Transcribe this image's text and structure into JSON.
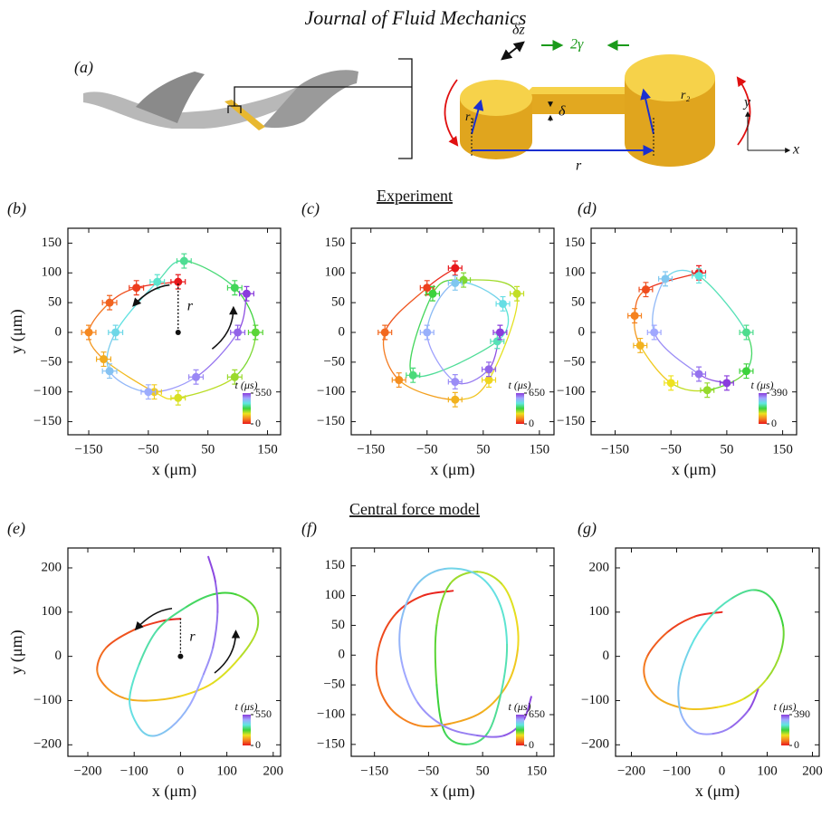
{
  "header": "Journal of Fluid Mechanics",
  "panel_a": {
    "label": "(a)",
    "labels": [
      "δz",
      "2γ",
      "r₁",
      "δ",
      "r",
      "r₂",
      "y",
      "x"
    ]
  },
  "sections": [
    "Experiment",
    "Central force model"
  ],
  "colormap": [
    "#e8181c",
    "#f58220",
    "#eee21e",
    "#3cd23c",
    "#5fe6e0",
    "#a0a8ff",
    "#8a3cdc"
  ],
  "chart_data": [
    {
      "panel": "(b)",
      "type": "scatter",
      "x": [
        0,
        -70,
        -115,
        -150,
        -125,
        -40,
        0,
        95,
        130,
        95,
        10,
        -35,
        -105,
        -115,
        -50,
        30,
        100,
        115
      ],
      "y": [
        85,
        75,
        50,
        0,
        -45,
        -100,
        -110,
        -75,
        0,
        75,
        120,
        85,
        0,
        -65,
        -100,
        -75,
        0,
        65
      ],
      "xerr": 12,
      "yerr": 12,
      "xlim": [
        -185,
        172
      ],
      "ylim": [
        -172,
        175
      ],
      "xticks": [
        {
          "value": -150,
          "label": "−150"
        },
        {
          "value": -50,
          "label": "−50"
        },
        50,
        150
      ],
      "yticks": [
        {
          "value": -150,
          "label": "−150"
        },
        {
          "value": -100,
          "label": "−100"
        },
        {
          "value": -50,
          "label": "−50"
        },
        0,
        50,
        100,
        150
      ],
      "xlabel": "x (μm)",
      "ylabel": "y (μm)",
      "annotation": "r",
      "colorbar": {
        "label": "t (μs)",
        "clim": [
          0,
          550
        ],
        "ticks": [
          0,
          550
        ]
      }
    },
    {
      "panel": "(c)",
      "type": "scatter",
      "x": [
        0,
        -50,
        -125,
        -100,
        0,
        60,
        110,
        15,
        -40,
        -75,
        75,
        85,
        0,
        -50,
        0,
        60,
        80
      ],
      "y": [
        108,
        75,
        0,
        -80,
        -113,
        -80,
        65,
        88,
        65,
        -72,
        -15,
        48,
        83,
        0,
        -83,
        -62,
        0
      ],
      "xerr": 12,
      "yerr": 12,
      "xlim": [
        -185,
        176
      ],
      "ylim": [
        -172,
        175
      ],
      "xticks": [
        {
          "value": -150,
          "label": "−150"
        },
        {
          "value": -50,
          "label": "−50"
        },
        50,
        150
      ],
      "yticks": [
        {
          "value": -150,
          "label": "−150"
        },
        {
          "value": -100,
          "label": "−100"
        },
        {
          "value": -50,
          "label": "−50"
        },
        0,
        50,
        100,
        150
      ],
      "xlabel": "x (μm)",
      "colorbar": {
        "label": "t (μs)",
        "clim": [
          0,
          650
        ],
        "ticks": [
          0,
          650
        ]
      }
    },
    {
      "panel": "(d)",
      "type": "scatter",
      "x": [
        0,
        -95,
        -115,
        -105,
        -50,
        15,
        85,
        85,
        0,
        -60,
        -80,
        0,
        50
      ],
      "y": [
        100,
        72,
        28,
        -22,
        -85,
        -97,
        -65,
        0,
        95,
        90,
        0,
        -70,
        -85
      ],
      "xerr": 12,
      "yerr": 12,
      "xlim": [
        -193,
        175
      ],
      "ylim": [
        -172,
        175
      ],
      "xticks": [
        {
          "value": -150,
          "label": "−150"
        },
        {
          "value": -50,
          "label": "−50"
        },
        50,
        150
      ],
      "yticks": [
        {
          "value": -150,
          "label": "−150"
        },
        {
          "value": -100,
          "label": "−100"
        },
        {
          "value": -50,
          "label": "−50"
        },
        0,
        50,
        100,
        150
      ],
      "xlabel": "x (μm)",
      "colorbar": {
        "label": "t (μs)",
        "clim": [
          0,
          390
        ],
        "ticks": [
          0,
          390
        ]
      }
    },
    {
      "panel": "(e)",
      "type": "line",
      "x": [
        0,
        -40,
        -100,
        -160,
        -180,
        -160,
        -120,
        -70,
        0,
        70,
        130,
        165,
        160,
        120,
        70,
        10,
        -50,
        -90,
        -110,
        -90,
        -60,
        -20,
        20,
        50,
        70,
        80,
        75,
        60
      ],
      "y": [
        85,
        80,
        60,
        20,
        -30,
        -70,
        -95,
        -100,
        -90,
        -60,
        0,
        60,
        110,
        140,
        140,
        110,
        60,
        -20,
        -100,
        -160,
        -180,
        -160,
        -110,
        -40,
        20,
        100,
        170,
        225
      ],
      "xlim": [
        -243,
        216
      ],
      "ylim": [
        -226,
        245
      ],
      "xticks": [
        {
          "value": -200,
          "label": "−200"
        },
        {
          "value": -100,
          "label": "−100"
        },
        0,
        100,
        200
      ],
      "yticks": [
        {
          "value": -200,
          "label": "−200"
        },
        {
          "value": -100,
          "label": "−100"
        },
        0,
        100,
        200
      ],
      "xlabel": "x (μm)",
      "ylabel": "y (μm)",
      "annotation": "r",
      "colorbar": {
        "label": "t (μs)",
        "clim": [
          0,
          550
        ],
        "ticks": [
          0,
          550
        ]
      }
    },
    {
      "panel": "(f)",
      "type": "line",
      "x": [
        -5,
        -60,
        -110,
        -140,
        -145,
        -120,
        -70,
        -10,
        50,
        95,
        115,
        110,
        85,
        40,
        -10,
        -35,
        -35,
        -20,
        20,
        60,
        85,
        95,
        80,
        40,
        -20,
        -70,
        -100,
        -100,
        -70,
        -20,
        40,
        90,
        125,
        140
      ],
      "y": [
        108,
        100,
        70,
        20,
        -40,
        -90,
        -118,
        -115,
        -95,
        -50,
        10,
        70,
        120,
        140,
        120,
        50,
        -50,
        -130,
        -150,
        -130,
        -60,
        20,
        90,
        135,
        145,
        120,
        60,
        -10,
        -80,
        -120,
        -135,
        -135,
        -110,
        -70
      ],
      "xlim": [
        -193,
        182
      ],
      "ylim": [
        -170,
        180
      ],
      "xticks": [
        {
          "value": -150,
          "label": "−150"
        },
        {
          "value": -50,
          "label": "−50"
        },
        50,
        150
      ],
      "yticks": [
        {
          "value": -150,
          "label": "−150"
        },
        {
          "value": -100,
          "label": "−100"
        },
        {
          "value": -50,
          "label": "−50"
        },
        0,
        50,
        100,
        150
      ],
      "xlabel": "x (μm)",
      "colorbar": {
        "label": "t (μs)",
        "clim": [
          0,
          650
        ],
        "ticks": [
          0,
          650
        ]
      }
    },
    {
      "panel": "(g)",
      "type": "line",
      "x": [
        0,
        -60,
        -120,
        -165,
        -170,
        -140,
        -80,
        -10,
        50,
        100,
        130,
        135,
        110,
        70,
        20,
        -30,
        -70,
        -95,
        -90,
        -60,
        -20,
        20,
        60,
        80
      ],
      "y": [
        100,
        90,
        55,
        0,
        -50,
        -95,
        -118,
        -115,
        -95,
        -50,
        10,
        70,
        130,
        150,
        130,
        85,
        20,
        -60,
        -130,
        -170,
        -175,
        -160,
        -120,
        -75
      ],
      "xlim": [
        -235,
        215
      ],
      "ylim": [
        -226,
        245
      ],
      "xticks": [
        {
          "value": -200,
          "label": "−200"
        },
        {
          "value": -100,
          "label": "−100"
        },
        0,
        100,
        200
      ],
      "yticks": [
        {
          "value": -200,
          "label": "−200"
        },
        {
          "value": -100,
          "label": "−100"
        },
        0,
        100,
        200
      ],
      "xlabel": "x (μm)",
      "colorbar": {
        "label": "t (μs)",
        "clim": [
          0,
          390
        ],
        "ticks": [
          0,
          390
        ]
      }
    }
  ]
}
